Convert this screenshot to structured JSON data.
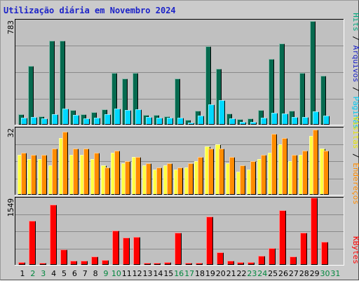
{
  "title": "Utilização diária em Novembro 2024",
  "colors": {
    "hits": "#066a4f",
    "files": "#00c8f0",
    "pages": "#00d8ff",
    "visits": "#ffff40",
    "sites": "#ff8c00",
    "kbytes": "#ff0000",
    "weekend_day": "#00873d",
    "weekday": "#000000",
    "panel_bg": "#c0c0c0",
    "grid": "#8a8a8a"
  },
  "legend": {
    "panel1": [
      {
        "text": "Hits",
        "color": "#00a87c"
      },
      {
        "text": " / ",
        "color": "#000000"
      },
      {
        "text": "Arquivos",
        "color": "#1c23c8"
      },
      {
        "text": " / ",
        "color": "#000000"
      },
      {
        "text": "Páginas",
        "color": "#00c8f0"
      }
    ],
    "panel2": [
      {
        "text": "Visitas",
        "color": "#e6e600"
      },
      {
        "text": " / ",
        "color": "#000000"
      },
      {
        "text": "Endereços",
        "color": "#ff8c00"
      }
    ],
    "panel3": [
      {
        "text": "KBytes",
        "color": "#ff0000"
      }
    ]
  },
  "chart_data": [
    {
      "type": "bar",
      "name": "Hits / Arquivos / Páginas",
      "ymax_label": "783",
      "ylim": [
        0,
        783
      ],
      "categories": [
        "1",
        "2",
        "3",
        "4",
        "5",
        "6",
        "7",
        "8",
        "9",
        "10",
        "11",
        "12",
        "13",
        "14",
        "15",
        "16",
        "17",
        "18",
        "19",
        "20",
        "21",
        "22",
        "23",
        "24",
        "25",
        "26",
        "27",
        "28",
        "29",
        "30",
        "31"
      ],
      "weekend_days": [
        "2",
        "3",
        "9",
        "10",
        "16",
        "17",
        "23",
        "24",
        "30",
        "31"
      ],
      "series": [
        {
          "name": "Hits",
          "values": [
            80,
            440,
            65,
            625,
            625,
            110,
            80,
            95,
            115,
            385,
            345,
            385,
            75,
            75,
            65,
            345,
            35,
            105,
            585,
            415,
            85,
            40,
            45,
            110,
            490,
            605,
            105,
            385,
            770,
            365,
            0
          ]
        },
        {
          "name": "Páginas",
          "values": [
            50,
            60,
            45,
            80,
            120,
            75,
            45,
            50,
            80,
            120,
            110,
            115,
            55,
            50,
            50,
            50,
            15,
            70,
            150,
            185,
            45,
            20,
            20,
            50,
            90,
            85,
            55,
            60,
            100,
            70,
            0
          ]
        }
      ]
    },
    {
      "type": "bar",
      "name": "Visitas / Endereços",
      "ymax_label": "32",
      "ylim": [
        0,
        32
      ],
      "categories": [
        "1",
        "2",
        "3",
        "4",
        "5",
        "6",
        "7",
        "8",
        "9",
        "10",
        "11",
        "12",
        "13",
        "14",
        "15",
        "16",
        "17",
        "18",
        "19",
        "20",
        "21",
        "22",
        "23",
        "24",
        "25",
        "26",
        "27",
        "28",
        "29",
        "30",
        "31"
      ],
      "series": [
        {
          "name": "Visitas",
          "values": [
            19,
            17,
            17,
            14,
            27,
            19,
            19,
            17,
            14,
            20,
            15,
            18,
            14,
            12,
            14,
            12,
            13,
            16,
            23,
            24,
            15,
            11,
            12,
            17,
            20,
            24,
            16,
            19,
            28,
            22,
            0
          ]
        },
        {
          "name": "Endereços",
          "values": [
            20,
            19,
            19,
            22,
            30,
            22,
            22,
            20,
            13,
            21,
            16,
            18,
            15,
            13,
            15,
            13,
            15,
            18,
            22,
            22,
            18,
            14,
            16,
            19,
            29,
            27,
            19,
            21,
            31,
            21,
            0
          ]
        }
      ]
    },
    {
      "type": "bar",
      "name": "KBytes",
      "ymax_label": "1549",
      "ylim": [
        0,
        1549
      ],
      "categories": [
        "1",
        "2",
        "3",
        "4",
        "5",
        "6",
        "7",
        "8",
        "9",
        "10",
        "11",
        "12",
        "13",
        "14",
        "15",
        "16",
        "17",
        "18",
        "19",
        "20",
        "21",
        "22",
        "23",
        "24",
        "25",
        "26",
        "27",
        "28",
        "29",
        "30",
        "31"
      ],
      "series": [
        {
          "name": "KBytes",
          "values": [
            60,
            1020,
            55,
            1380,
            360,
            100,
            100,
            200,
            110,
            790,
            630,
            650,
            55,
            50,
            65,
            740,
            55,
            55,
            1110,
            290,
            100,
            60,
            60,
            210,
            390,
            1260,
            200,
            740,
            1550,
            540,
            0
          ]
        }
      ]
    }
  ]
}
